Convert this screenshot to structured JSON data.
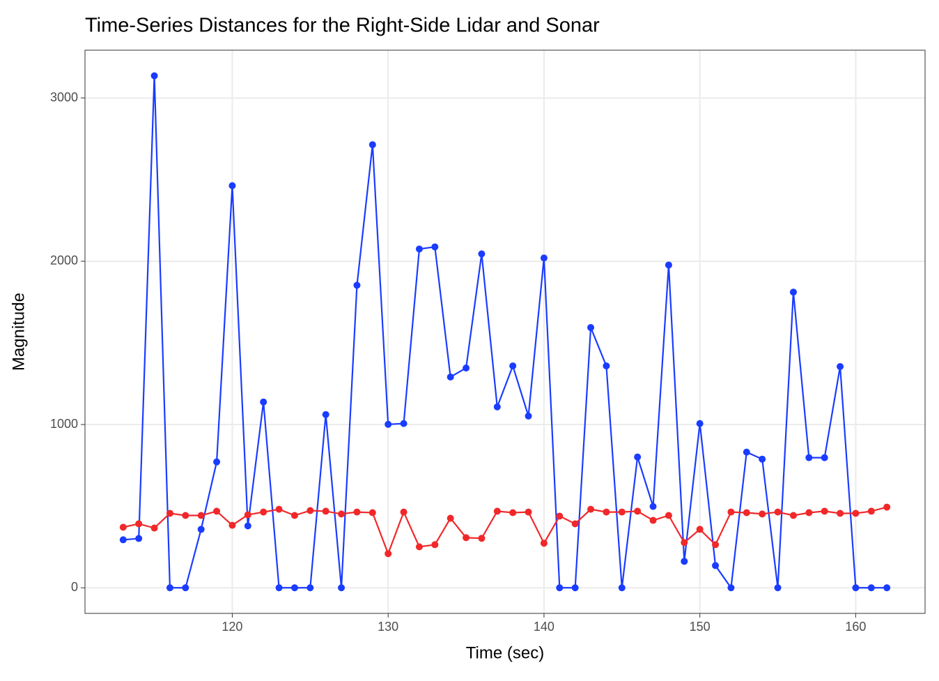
{
  "chart_data": {
    "type": "line",
    "title": "Time-Series Distances for the Right-Side Lidar and Sonar",
    "x_label": "Time (sec)",
    "y_label": "Magnitude",
    "x": [
      113,
      114,
      115,
      116,
      117,
      118,
      119,
      120,
      121,
      122,
      123,
      124,
      125,
      126,
      127,
      128,
      129,
      130,
      131,
      132,
      133,
      134,
      135,
      136,
      137,
      138,
      139,
      140,
      141,
      142,
      143,
      144,
      145,
      146,
      147,
      148,
      149,
      150,
      151,
      152,
      153,
      154,
      155,
      156,
      157,
      158,
      159,
      160,
      161,
      162
    ],
    "series": [
      {
        "color": "#1a3cff",
        "values": [
          294,
          302,
          3136,
          0,
          0,
          358,
          771,
          2463,
          379,
          1138,
          0,
          0,
          0,
          1061,
          0,
          1853,
          2714,
          1001,
          1006,
          2075,
          2088,
          1291,
          1346,
          2045,
          1108,
          1359,
          1052,
          2020,
          0,
          0,
          1594,
          1359,
          0,
          801,
          498,
          1977,
          162,
          1006,
          136,
          0,
          831,
          788,
          0,
          1811,
          797,
          797,
          1355,
          0,
          0,
          0
        ]
      },
      {
        "color": "#f0282a",
        "values": [
          371,
          392,
          366,
          456,
          443,
          443,
          469,
          383,
          447,
          464,
          481,
          443,
          473,
          469,
          452,
          464,
          460,
          209,
          464,
          251,
          264,
          426,
          307,
          303,
          469,
          460,
          464,
          273,
          439,
          392,
          481,
          464,
          464,
          469,
          413,
          443,
          277,
          358,
          264,
          464,
          460,
          452,
          464,
          443,
          460,
          469,
          456,
          456,
          469,
          494
        ]
      }
    ],
    "xlim": [
      110.55,
      164.45
    ],
    "ylim": [
      -156.8,
      3292.8
    ],
    "xticks": [
      120,
      130,
      140,
      150,
      160
    ],
    "yticks": [
      0,
      1000,
      2000,
      3000
    ],
    "grid": true
  }
}
